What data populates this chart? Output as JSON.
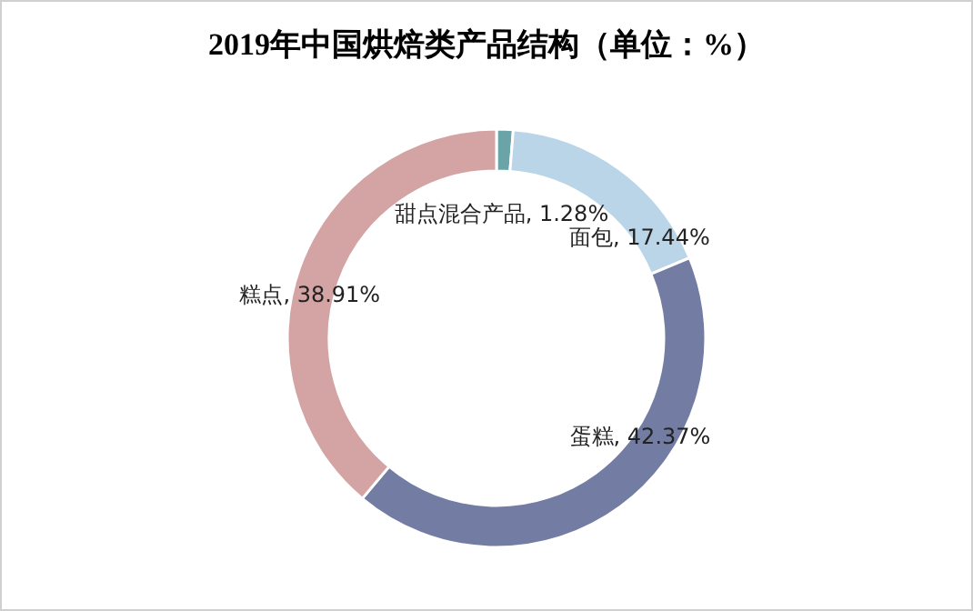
{
  "chart_data": {
    "type": "donut",
    "title": "2019年中国烘焙类产品结构（单位：%）",
    "categories": [
      "甜点混合产品",
      "面包",
      "蛋糕",
      "糕点"
    ],
    "values": [
      1.28,
      17.44,
      42.37,
      38.91
    ],
    "value_labels": [
      "1.28%",
      "17.44%",
      "42.37%",
      "38.91%"
    ],
    "colors": [
      "#6aa3a8",
      "#b9d5e7",
      "#737da4",
      "#d4a4a4"
    ]
  }
}
